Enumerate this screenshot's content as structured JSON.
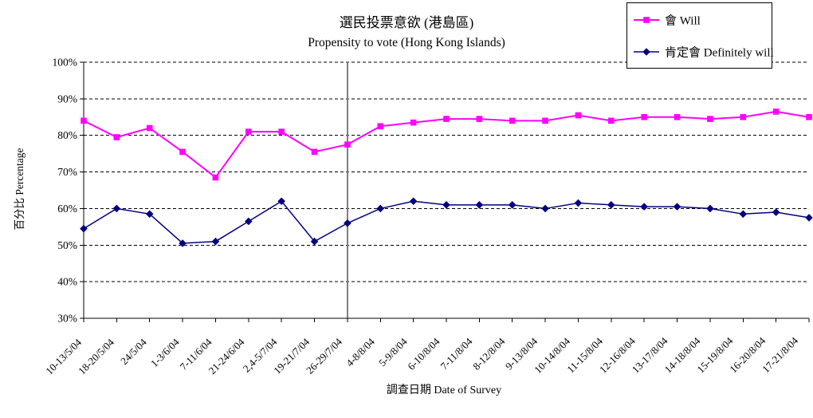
{
  "chart_data": {
    "type": "line",
    "title": "選民投票意欲 (港島區)",
    "subtitle": "Propensity to vote (Hong Kong Islands)",
    "ylabel": "百分比 Percentage",
    "xlabel": "調查日期 Date of Survey",
    "ylim": [
      30,
      100
    ],
    "ytick_step": 10,
    "ytick_labels": [
      "30%",
      "40%",
      "50%",
      "60%",
      "70%",
      "80%",
      "90%",
      "100%"
    ],
    "grid": "horizontal-dashed",
    "legend_position": "top-right",
    "divider_at_category": "26-29/7/04",
    "categories": [
      "10-13/5/04",
      "18-20/5/04",
      "24/5/04",
      "1-3/6/04",
      "7-11/6/04",
      "21-24/6/04",
      "2,4-5/7/04",
      "19-21/7/04",
      "26-29/7/04",
      "4-8/8/04",
      "5-9/8/04",
      "6-10/8/04",
      "7-11/8/04",
      "8-12/8/04",
      "9-13/8/04",
      "10-14/8/04",
      "11-15/8/04",
      "12-16/8/04",
      "13-17/8/04",
      "14-18/8/04",
      "15-19/8/04",
      "16-20/8/04",
      "17-21/8/04"
    ],
    "series": [
      {
        "name": "會 Will",
        "color": "#FF00FF",
        "marker": "square",
        "values": [
          84,
          79.5,
          82,
          75.5,
          68.5,
          81,
          81,
          75.5,
          77.5,
          82.5,
          83.5,
          84.5,
          84.5,
          84,
          84,
          85.5,
          84,
          85,
          85,
          84.5,
          85,
          86.5,
          85
        ]
      },
      {
        "name": "肯定會 Definitely will",
        "color": "#000080",
        "marker": "diamond",
        "values": [
          54.5,
          60,
          58.5,
          50.5,
          51,
          56.5,
          62,
          51,
          56,
          60,
          62,
          61,
          61,
          61,
          60,
          61.5,
          61,
          60.5,
          60.5,
          60,
          58.5,
          59,
          57.5
        ]
      }
    ]
  }
}
